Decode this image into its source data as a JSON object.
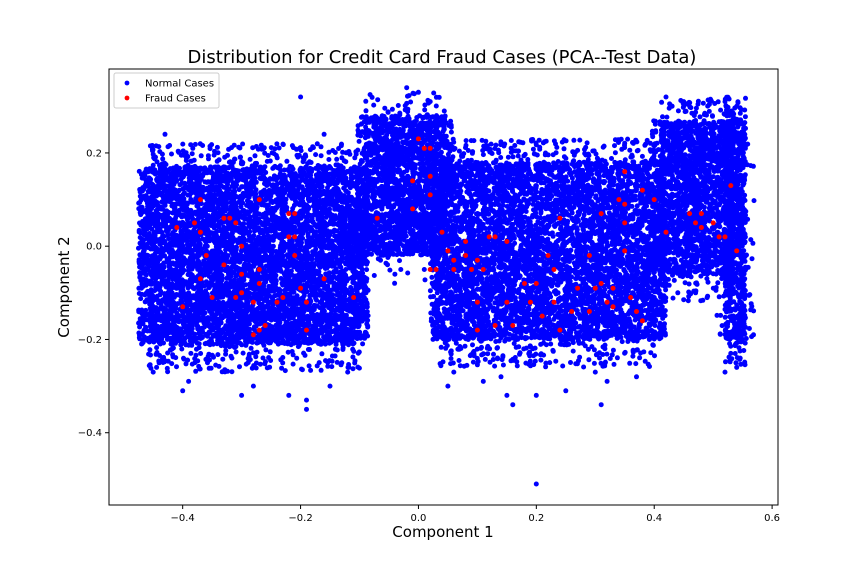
{
  "chart_data": {
    "type": "scatter",
    "title": "Distribution for Credit Card Fraud Cases (PCA--Test Data)",
    "xlabel": "Component 1",
    "ylabel": "Component 2",
    "xlim": [
      -0.525,
      0.61
    ],
    "ylim": [
      -0.555,
      0.38
    ],
    "xticks": [
      -0.4,
      -0.2,
      0.0,
      0.2,
      0.4,
      0.6
    ],
    "xtick_labels": [
      "−0.4",
      "−0.2",
      "0.0",
      "0.2",
      "0.4",
      "0.6"
    ],
    "yticks": [
      -0.4,
      -0.2,
      0.0,
      0.2
    ],
    "ytick_labels": [
      "−0.4",
      "−0.2",
      "0.0",
      "0.2"
    ],
    "grid": false,
    "legend_position": "top-left",
    "colors": {
      "normal": "#0000ff",
      "fraud": "#ff0000"
    },
    "series": [
      {
        "name": "Normal Cases",
        "color": "#0000ff",
        "clusters": [
          {
            "x_range": [
              -0.46,
              -0.1
            ],
            "y_range": [
              -0.21,
              0.17
            ]
          },
          {
            "x_range": [
              -0.09,
              0.045
            ],
            "y_range": [
              0.05,
              0.28
            ]
          },
          {
            "x_range": [
              -0.12,
              0.04
            ],
            "y_range": [
              -0.02,
              0.07
            ]
          },
          {
            "x_range": [
              0.035,
              0.405
            ],
            "y_range": [
              -0.2,
              0.18
            ]
          },
          {
            "x_range": [
              0.41,
              0.535
            ],
            "y_range": [
              -0.06,
              0.27
            ]
          },
          {
            "x_range": [
              0.52,
              0.555
            ],
            "y_range": [
              -0.2,
              0.27
            ]
          }
        ],
        "points": [
          [
            -0.02,
            0.34
          ],
          [
            -0.2,
            0.32
          ],
          [
            0.0,
            0.33
          ],
          [
            0.02,
            0.31
          ],
          [
            0.42,
            0.32
          ],
          [
            0.45,
            0.31
          ],
          [
            0.54,
            0.3
          ],
          [
            0.52,
            0.31
          ],
          [
            -0.16,
            0.24
          ],
          [
            -0.43,
            0.24
          ],
          [
            0.2,
            -0.51
          ],
          [
            0.31,
            -0.34
          ],
          [
            -0.19,
            -0.35
          ],
          [
            -0.19,
            -0.33
          ],
          [
            -0.22,
            -0.32
          ],
          [
            -0.3,
            -0.32
          ],
          [
            -0.28,
            -0.3
          ],
          [
            -0.39,
            -0.29
          ],
          [
            -0.4,
            -0.31
          ],
          [
            0.16,
            -0.34
          ],
          [
            0.15,
            -0.32
          ],
          [
            0.2,
            -0.32
          ],
          [
            0.25,
            -0.31
          ],
          [
            0.37,
            -0.28
          ],
          [
            0.05,
            -0.3
          ],
          [
            0.06,
            -0.27
          ],
          [
            0.11,
            -0.29
          ],
          [
            0.14,
            -0.28
          ],
          [
            0.3,
            -0.27
          ],
          [
            0.32,
            -0.29
          ],
          [
            0.53,
            -0.23
          ],
          [
            0.54,
            -0.26
          ],
          [
            0.52,
            -0.27
          ],
          [
            0.53,
            -0.19
          ],
          [
            0.55,
            -0.2
          ],
          [
            -0.45,
            -0.27
          ],
          [
            -0.47,
            -0.09
          ],
          [
            -0.44,
            -0.25
          ],
          [
            -0.12,
            -0.27
          ],
          [
            -0.15,
            -0.3
          ],
          [
            -0.03,
            -0.05
          ],
          [
            -0.04,
            -0.06
          ],
          [
            0.01,
            -0.05
          ],
          [
            0.42,
            -0.08
          ],
          [
            0.44,
            -0.1
          ],
          [
            0.46,
            -0.06
          ]
        ]
      },
      {
        "name": "Fraud Cases",
        "color": "#ff0000",
        "points": [
          [
            -0.41,
            0.04
          ],
          [
            -0.37,
            0.1
          ],
          [
            -0.38,
            0.05
          ],
          [
            -0.37,
            0.03
          ],
          [
            -0.36,
            -0.02
          ],
          [
            -0.33,
            -0.04
          ],
          [
            -0.33,
            0.06
          ],
          [
            -0.32,
            0.06
          ],
          [
            -0.31,
            0.05
          ],
          [
            -0.3,
            0.0
          ],
          [
            -0.3,
            -0.06
          ],
          [
            -0.3,
            -0.1
          ],
          [
            -0.31,
            -0.11
          ],
          [
            -0.35,
            -0.11
          ],
          [
            -0.4,
            -0.13
          ],
          [
            -0.37,
            -0.07
          ],
          [
            -0.28,
            -0.19
          ],
          [
            -0.27,
            -0.18
          ],
          [
            -0.28,
            -0.12
          ],
          [
            -0.27,
            -0.08
          ],
          [
            -0.27,
            -0.05
          ],
          [
            -0.26,
            -0.17
          ],
          [
            -0.27,
            0.1
          ],
          [
            -0.24,
            -0.12
          ],
          [
            -0.23,
            -0.11
          ],
          [
            -0.22,
            0.07
          ],
          [
            -0.21,
            0.07
          ],
          [
            -0.22,
            0.02
          ],
          [
            -0.21,
            0.02
          ],
          [
            -0.21,
            -0.02
          ],
          [
            -0.2,
            -0.09
          ],
          [
            -0.19,
            -0.12
          ],
          [
            -0.19,
            -0.18
          ],
          [
            -0.16,
            -0.07
          ],
          [
            -0.11,
            -0.11
          ],
          [
            -0.07,
            0.06
          ],
          [
            -0.01,
            0.08
          ],
          [
            -0.01,
            0.14
          ],
          [
            0.0,
            0.23
          ],
          [
            0.01,
            0.21
          ],
          [
            0.02,
            0.21
          ],
          [
            0.02,
            0.15
          ],
          [
            0.02,
            0.11
          ],
          [
            0.03,
            -0.05
          ],
          [
            0.02,
            -0.05
          ],
          [
            0.04,
            0.03
          ],
          [
            0.05,
            -0.01
          ],
          [
            0.06,
            -0.05
          ],
          [
            0.06,
            -0.03
          ],
          [
            0.08,
            -0.02
          ],
          [
            0.08,
            0.01
          ],
          [
            0.09,
            -0.05
          ],
          [
            0.1,
            -0.03
          ],
          [
            0.11,
            -0.05
          ],
          [
            0.12,
            0.02
          ],
          [
            0.13,
            0.02
          ],
          [
            0.15,
            0.01
          ],
          [
            0.15,
            -0.12
          ],
          [
            0.1,
            -0.12
          ],
          [
            0.1,
            -0.18
          ],
          [
            0.13,
            -0.17
          ],
          [
            0.16,
            -0.17
          ],
          [
            0.18,
            -0.08
          ],
          [
            0.19,
            -0.12
          ],
          [
            0.2,
            -0.08
          ],
          [
            0.21,
            -0.15
          ],
          [
            0.22,
            -0.02
          ],
          [
            0.23,
            -0.05
          ],
          [
            0.23,
            -0.12
          ],
          [
            0.24,
            -0.18
          ],
          [
            0.24,
            0.06
          ],
          [
            0.26,
            -0.14
          ],
          [
            0.27,
            -0.09
          ],
          [
            0.29,
            -0.02
          ],
          [
            0.29,
            -0.14
          ],
          [
            0.3,
            -0.09
          ],
          [
            0.31,
            0.07
          ],
          [
            0.31,
            -0.08
          ],
          [
            0.32,
            -0.12
          ],
          [
            0.33,
            -0.13
          ],
          [
            0.33,
            -0.09
          ],
          [
            0.34,
            0.1
          ],
          [
            0.35,
            0.16
          ],
          [
            0.35,
            0.09
          ],
          [
            0.35,
            0.05
          ],
          [
            0.35,
            -0.01
          ],
          [
            0.36,
            -0.11
          ],
          [
            0.37,
            -0.14
          ],
          [
            0.38,
            -0.16
          ],
          [
            0.38,
            0.12
          ],
          [
            0.4,
            0.1
          ],
          [
            0.42,
            0.03
          ],
          [
            0.46,
            0.07
          ],
          [
            0.47,
            0.05
          ],
          [
            0.48,
            0.07
          ],
          [
            0.48,
            0.04
          ],
          [
            0.5,
            0.05
          ],
          [
            0.51,
            0.02
          ],
          [
            0.52,
            0.02
          ],
          [
            0.53,
            0.13
          ],
          [
            0.54,
            -0.01
          ]
        ]
      }
    ]
  }
}
